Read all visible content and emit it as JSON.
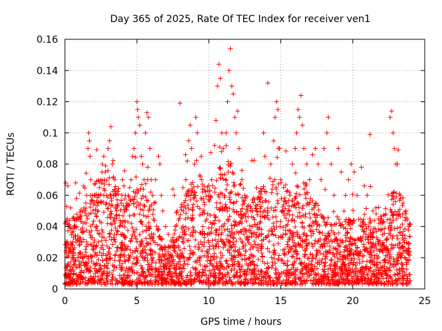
{
  "chart_data": {
    "type": "scatter",
    "title": "Day 365 of 2025, Rate Of TEC Index for receiver ven1",
    "xlabel": "GPS time / hours",
    "ylabel": "ROTI / TECUs",
    "xlim": [
      0,
      25
    ],
    "ylim": [
      0,
      0.16
    ],
    "xticks": [
      0,
      5,
      10,
      15,
      20,
      25
    ],
    "xtick_labels": [
      "0",
      "5",
      "10",
      "15",
      "20",
      "25"
    ],
    "yticks": [
      0,
      0.02,
      0.04,
      0.06,
      0.08,
      0.1,
      0.12,
      0.14,
      0.16
    ],
    "ytick_labels": [
      "0",
      "0.02",
      "0.04",
      "0.06",
      "0.08",
      "0.1",
      "0.12",
      "0.14",
      "0.16"
    ],
    "grid": true,
    "marker": "plus",
    "color": "#ff0000",
    "series": [
      {
        "points": [
          [
            0.05,
            0.068
          ],
          [
            0.1,
            0.03
          ],
          [
            0.15,
            0.045
          ],
          [
            0.2,
            0.066
          ],
          [
            0.3,
            0.04
          ],
          [
            0.4,
            0.052
          ],
          [
            0.5,
            0.036
          ],
          [
            0.6,
            0.046
          ],
          [
            0.75,
            0.068
          ],
          [
            0.8,
            0.058
          ],
          [
            0.9,
            0.034
          ],
          [
            1.0,
            0.028
          ],
          [
            1.2,
            0.036
          ],
          [
            1.4,
            0.05
          ],
          [
            1.5,
            0.06
          ],
          [
            1.6,
            0.09
          ],
          [
            1.65,
            0.1
          ],
          [
            1.7,
            0.095
          ],
          [
            1.75,
            0.085
          ],
          [
            1.8,
            0.07
          ],
          [
            1.9,
            0.06
          ],
          [
            2.0,
            0.054
          ],
          [
            2.2,
            0.04
          ],
          [
            2.3,
            0.05
          ],
          [
            2.4,
            0.065
          ],
          [
            2.5,
            0.07
          ],
          [
            2.6,
            0.08
          ],
          [
            2.7,
            0.085
          ],
          [
            2.8,
            0.075
          ],
          [
            2.9,
            0.06
          ],
          [
            3.0,
            0.09
          ],
          [
            3.1,
            0.095
          ],
          [
            3.2,
            0.104
          ],
          [
            3.3,
            0.08
          ],
          [
            3.5,
            0.06
          ],
          [
            3.6,
            0.05
          ],
          [
            3.8,
            0.04
          ],
          [
            3.9,
            0.055
          ],
          [
            4.0,
            0.07
          ],
          [
            4.1,
            0.066
          ],
          [
            4.2,
            0.06
          ],
          [
            4.3,
            0.055
          ],
          [
            4.4,
            0.06
          ],
          [
            4.5,
            0.065
          ],
          [
            4.6,
            0.07
          ],
          [
            4.7,
            0.085
          ],
          [
            4.8,
            0.09
          ],
          [
            4.9,
            0.1
          ],
          [
            5.0,
            0.12
          ],
          [
            5.05,
            0.115
          ],
          [
            5.1,
            0.11
          ],
          [
            5.2,
            0.105
          ],
          [
            5.3,
            0.085
          ],
          [
            5.4,
            0.08
          ],
          [
            5.5,
            0.07
          ],
          [
            5.6,
            0.1
          ],
          [
            5.7,
            0.113
          ],
          [
            5.8,
            0.11
          ],
          [
            5.9,
            0.09
          ],
          [
            6.0,
            0.07
          ],
          [
            6.1,
            0.06
          ],
          [
            6.2,
            0.055
          ],
          [
            6.3,
            0.07
          ],
          [
            6.5,
            0.085
          ],
          [
            6.6,
            0.08
          ],
          [
            6.7,
            0.06
          ],
          [
            6.8,
            0.05
          ],
          [
            7.0,
            0.04
          ],
          [
            7.2,
            0.035
          ],
          [
            7.5,
            0.064
          ],
          [
            7.6,
            0.06
          ],
          [
            7.8,
            0.05
          ],
          [
            8.0,
            0.119
          ],
          [
            8.2,
            0.065
          ],
          [
            8.4,
            0.07
          ],
          [
            8.5,
            0.082
          ],
          [
            8.6,
            0.095
          ],
          [
            8.7,
            0.105
          ],
          [
            8.8,
            0.09
          ],
          [
            9.0,
            0.08
          ],
          [
            9.1,
            0.11
          ],
          [
            9.2,
            0.1
          ],
          [
            9.4,
            0.072
          ],
          [
            9.5,
            0.07
          ],
          [
            9.7,
            0.054
          ],
          [
            10.0,
            0.06
          ],
          [
            10.2,
            0.07
          ],
          [
            10.4,
            0.092
          ],
          [
            10.5,
            0.108
          ],
          [
            10.6,
            0.13
          ],
          [
            10.7,
            0.144
          ],
          [
            10.8,
            0.135
          ],
          [
            10.9,
            0.1
          ],
          [
            11.0,
            0.09
          ],
          [
            11.2,
            0.1
          ],
          [
            11.3,
            0.12
          ],
          [
            11.4,
            0.14
          ],
          [
            11.5,
            0.154
          ],
          [
            11.6,
            0.13
          ],
          [
            11.7,
            0.125
          ],
          [
            11.8,
            0.11
          ],
          [
            11.9,
            0.1
          ],
          [
            12.0,
            0.114
          ],
          [
            12.1,
            0.09
          ],
          [
            12.3,
            0.07
          ],
          [
            12.5,
            0.06
          ],
          [
            12.7,
            0.05
          ],
          [
            13.0,
            0.04
          ],
          [
            13.3,
            0.05
          ],
          [
            13.5,
            0.062
          ],
          [
            13.8,
            0.1
          ],
          [
            13.9,
            0.085
          ],
          [
            14.1,
            0.132
          ],
          [
            14.3,
            0.08
          ],
          [
            14.5,
            0.095
          ],
          [
            14.6,
            0.11
          ],
          [
            14.7,
            0.12
          ],
          [
            14.8,
            0.115
          ],
          [
            14.9,
            0.09
          ],
          [
            15.0,
            0.07
          ],
          [
            15.2,
            0.065
          ],
          [
            15.4,
            0.055
          ],
          [
            15.6,
            0.05
          ],
          [
            15.8,
            0.08
          ],
          [
            16.0,
            0.09
          ],
          [
            16.1,
            0.1
          ],
          [
            16.2,
            0.115
          ],
          [
            16.3,
            0.11
          ],
          [
            16.4,
            0.124
          ],
          [
            16.5,
            0.105
          ],
          [
            16.6,
            0.09
          ],
          [
            16.8,
            0.08
          ],
          [
            17.0,
            0.07
          ],
          [
            17.2,
            0.086
          ],
          [
            17.4,
            0.09
          ],
          [
            17.6,
            0.08
          ],
          [
            17.8,
            0.07
          ],
          [
            18.0,
            0.09
          ],
          [
            18.2,
            0.1
          ],
          [
            18.3,
            0.11
          ],
          [
            18.5,
            0.08
          ],
          [
            18.7,
            0.06
          ],
          [
            19.0,
            0.09
          ],
          [
            19.2,
            0.075
          ],
          [
            19.5,
            0.06
          ],
          [
            19.7,
            0.07
          ],
          [
            19.9,
            0.08
          ],
          [
            20.1,
            0.075
          ],
          [
            20.3,
            0.06
          ],
          [
            20.6,
            0.078
          ],
          [
            20.8,
            0.066
          ],
          [
            21.0,
            0.06
          ],
          [
            21.2,
            0.099
          ],
          [
            21.4,
            0.05
          ],
          [
            21.6,
            0.052
          ],
          [
            22.0,
            0.045
          ],
          [
            22.3,
            0.048
          ],
          [
            22.6,
            0.11
          ],
          [
            22.7,
            0.114
          ],
          [
            22.8,
            0.1
          ],
          [
            22.9,
            0.09
          ],
          [
            23.0,
            0.08
          ],
          [
            23.1,
            0.08
          ],
          [
            23.3,
            0.06
          ],
          [
            23.5,
            0.055
          ],
          [
            23.7,
            0.05
          ],
          [
            23.9,
            0.04
          ]
        ]
      }
    ]
  }
}
